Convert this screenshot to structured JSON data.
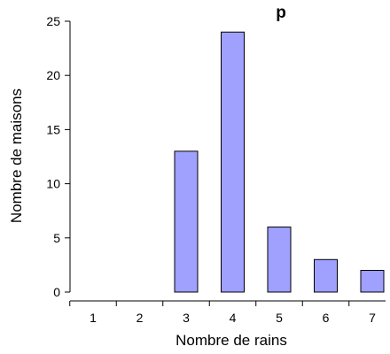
{
  "chart_data": {
    "type": "bar",
    "title": "p",
    "xlabel": "Nombre de rains",
    "ylabel": "Nombre de maisons",
    "categories": [
      "1",
      "2",
      "3",
      "4",
      "5",
      "6",
      "7"
    ],
    "values": [
      0,
      0,
      13,
      24,
      6,
      3,
      2
    ],
    "ylim": [
      0,
      25
    ],
    "yticks": [
      "0",
      "5",
      "10",
      "15",
      "20",
      "25"
    ],
    "grid": false,
    "bar_color": "#a0a0ff",
    "bar_edge_color": "#000000"
  }
}
